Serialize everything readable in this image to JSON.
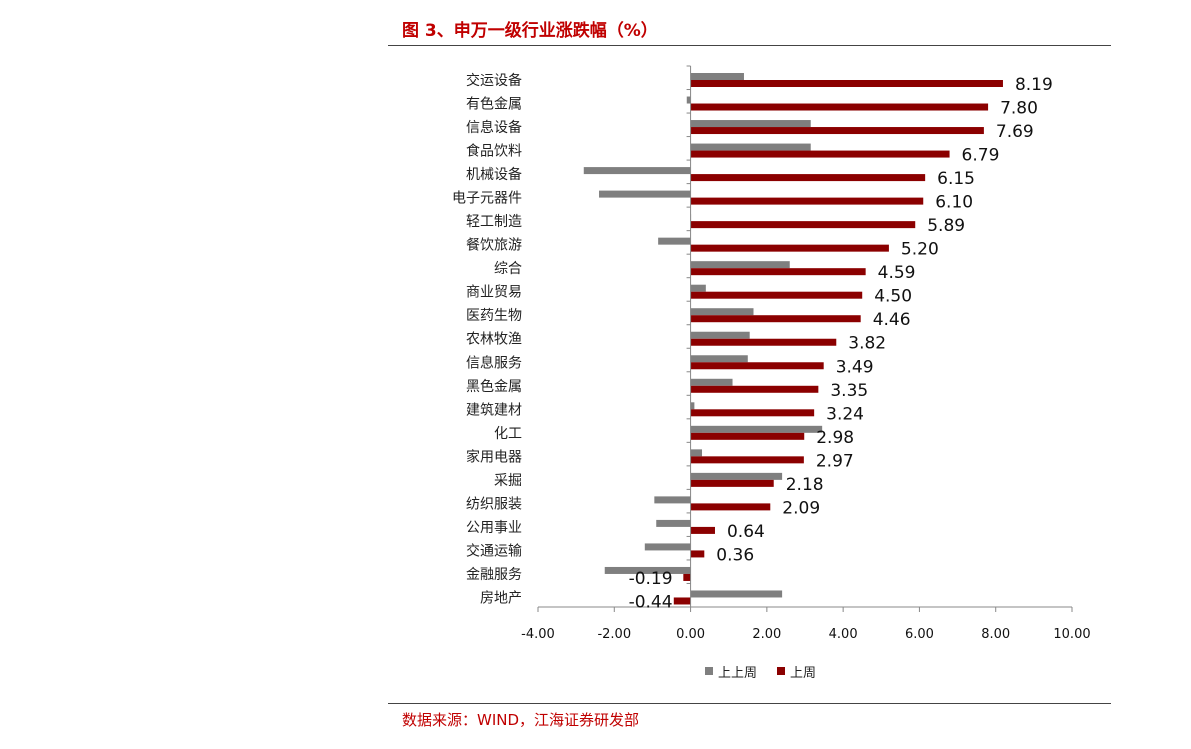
{
  "title": "图 3、申万一级行业涨跌幅（%）",
  "source": "数据来源：WIND，江海证券研发部",
  "colors": {
    "accent": "#c00000",
    "series_prev": "#7f7f7f",
    "series_last": "#8b0000"
  },
  "chart_data": {
    "type": "bar",
    "orientation": "horizontal",
    "categories": [
      "交运设备",
      "有色金属",
      "信息设备",
      "食品饮料",
      "机械设备",
      "电子元器件",
      "轻工制造",
      "餐饮旅游",
      "综合",
      "商业贸易",
      "医药生物",
      "农林牧渔",
      "信息服务",
      "黑色金属",
      "建筑建材",
      "化工",
      "家用电器",
      "采掘",
      "纺织服装",
      "公用事业",
      "交通运输",
      "金融服务",
      "房地产"
    ],
    "series": [
      {
        "name": "上上周",
        "values": [
          1.4,
          -0.1,
          3.15,
          3.15,
          -2.8,
          -2.4,
          0.0,
          -0.85,
          2.6,
          0.4,
          1.65,
          1.55,
          1.5,
          1.1,
          0.1,
          3.45,
          0.3,
          2.4,
          -0.95,
          -0.9,
          -1.2,
          -2.25,
          2.4
        ]
      },
      {
        "name": "上周",
        "values": [
          8.19,
          7.8,
          7.69,
          6.79,
          6.15,
          6.1,
          5.89,
          5.2,
          4.59,
          4.5,
          4.46,
          3.82,
          3.49,
          3.35,
          3.24,
          2.98,
          2.97,
          2.18,
          2.09,
          0.64,
          0.36,
          -0.19,
          -0.44
        ]
      }
    ],
    "data_labels": [
      "8.19",
      "7.80",
      "7.69",
      "6.79",
      "6.15",
      "6.10",
      "5.89",
      "5.20",
      "4.59",
      "4.50",
      "4.46",
      "3.82",
      "3.49",
      "3.35",
      "3.24",
      "2.98",
      "2.97",
      "2.18",
      "2.09",
      "0.64",
      "0.36",
      "-0.19",
      "-0.44"
    ],
    "xlim": [
      -4,
      10
    ],
    "x_ticks": [
      -4,
      -2,
      0,
      2,
      4,
      6,
      8,
      10
    ],
    "x_tick_labels": [
      "-4.00",
      "-2.00",
      "0.00",
      "2.00",
      "4.00",
      "6.00",
      "8.00",
      "10.00"
    ],
    "grid": false,
    "legend_position": "bottom"
  }
}
